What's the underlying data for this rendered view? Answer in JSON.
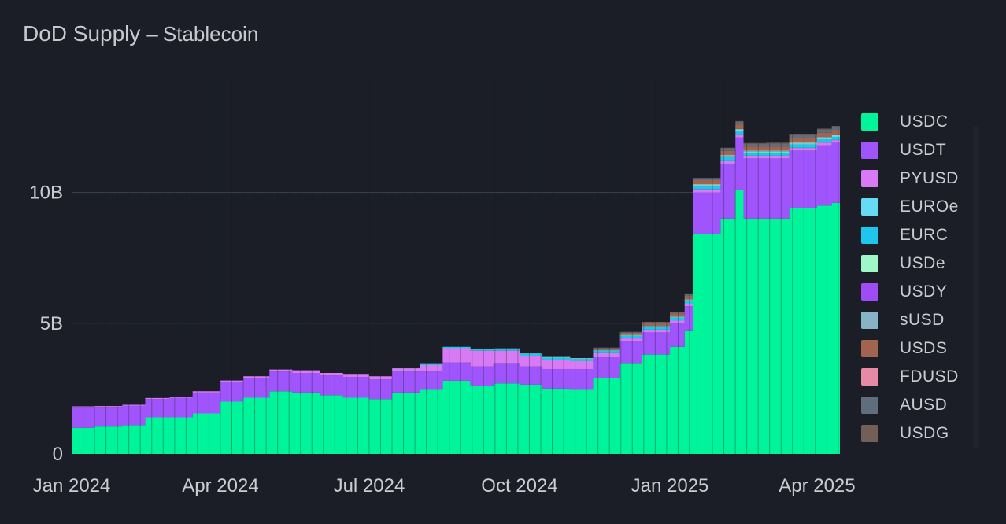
{
  "title": {
    "main": "DoD Supply",
    "separator": "–",
    "subtitle": "Stablecoin"
  },
  "colors": {
    "background": "#1b1e26",
    "grid": "#3b4553",
    "text": "#c9ccd3"
  },
  "chart_data": {
    "type": "area",
    "stacked": true,
    "title": "DoD Supply – Stablecoin",
    "xlabel": "",
    "ylabel": "",
    "x_ticks": [
      "Jan 2024",
      "Apr 2024",
      "Jul 2024",
      "Oct 2024",
      "Jan 2025",
      "Apr 2025"
    ],
    "y_ticks": [
      "0",
      "5B",
      "10B"
    ],
    "y_tick_values": [
      0,
      5,
      10
    ],
    "ylim": [
      0,
      14.5
    ],
    "unit": "B",
    "grid": "horizontal",
    "legend_position": "right",
    "x": [
      "2024-01-01",
      "2024-01-15",
      "2024-02-01",
      "2024-02-15",
      "2024-03-01",
      "2024-03-15",
      "2024-04-01",
      "2024-04-15",
      "2024-05-01",
      "2024-05-15",
      "2024-06-01",
      "2024-06-15",
      "2024-07-01",
      "2024-07-15",
      "2024-08-01",
      "2024-08-15",
      "2024-09-01",
      "2024-09-15",
      "2024-10-01",
      "2024-10-15",
      "2024-11-01",
      "2024-11-15",
      "2024-12-01",
      "2024-12-15",
      "2025-01-01",
      "2025-01-10",
      "2025-01-15",
      "2025-02-01",
      "2025-02-10",
      "2025-02-15",
      "2025-03-01",
      "2025-03-15",
      "2025-04-01",
      "2025-04-10"
    ],
    "series": [
      {
        "name": "USDC",
        "color": "#00f59b",
        "values": [
          1.0,
          1.05,
          1.1,
          1.4,
          1.4,
          1.55,
          2.0,
          2.15,
          2.4,
          2.35,
          2.25,
          2.15,
          2.1,
          2.35,
          2.45,
          2.8,
          2.6,
          2.7,
          2.65,
          2.5,
          2.45,
          2.9,
          3.45,
          3.8,
          4.1,
          4.7,
          8.4,
          9.0,
          10.1,
          9.0,
          9.0,
          9.4,
          9.5,
          9.6
        ]
      },
      {
        "name": "USDT",
        "color": "#a054fc",
        "values": [
          0.8,
          0.75,
          0.75,
          0.7,
          0.75,
          0.8,
          0.75,
          0.75,
          0.75,
          0.75,
          0.75,
          0.8,
          0.75,
          0.8,
          0.7,
          0.7,
          0.75,
          0.75,
          0.7,
          0.75,
          0.8,
          0.8,
          0.85,
          0.85,
          0.9,
          0.95,
          1.6,
          2.1,
          2.0,
          2.3,
          2.3,
          2.2,
          2.3,
          2.3
        ]
      },
      {
        "name": "PYUSD",
        "color": "#d97af5",
        "values": [
          0.02,
          0.03,
          0.03,
          0.04,
          0.04,
          0.05,
          0.06,
          0.07,
          0.08,
          0.1,
          0.1,
          0.11,
          0.12,
          0.12,
          0.25,
          0.55,
          0.6,
          0.5,
          0.4,
          0.35,
          0.3,
          0.15,
          0.12,
          0.1,
          0.1,
          0.1,
          0.12,
          0.12,
          0.12,
          0.1,
          0.1,
          0.1,
          0.1,
          0.1
        ]
      },
      {
        "name": "EUROe",
        "color": "#66dbf4",
        "values": [
          0,
          0,
          0,
          0,
          0,
          0,
          0,
          0,
          0,
          0,
          0,
          0,
          0,
          0.01,
          0.01,
          0.01,
          0.01,
          0.01,
          0.01,
          0.01,
          0.01,
          0.01,
          0.01,
          0.01,
          0.01,
          0.01,
          0.01,
          0.01,
          0.01,
          0.01,
          0.01,
          0.01,
          0.01,
          0.01
        ]
      },
      {
        "name": "EURC",
        "color": "#1ec6ee",
        "values": [
          0,
          0,
          0,
          0,
          0,
          0,
          0,
          0,
          0,
          0,
          0,
          0,
          0,
          0,
          0.03,
          0.04,
          0.05,
          0.06,
          0.07,
          0.08,
          0.08,
          0.09,
          0.09,
          0.1,
          0.1,
          0.11,
          0.12,
          0.12,
          0.12,
          0.12,
          0.12,
          0.13,
          0.13,
          0.13
        ]
      },
      {
        "name": "USDe",
        "color": "#9ef7c6",
        "values": [
          0,
          0,
          0,
          0,
          0,
          0,
          0,
          0,
          0,
          0,
          0,
          0,
          0,
          0,
          0,
          0,
          0,
          0.01,
          0.01,
          0.01,
          0.01,
          0.01,
          0.02,
          0.02,
          0.02,
          0.02,
          0.03,
          0.03,
          0.03,
          0.03,
          0.03,
          0.03,
          0.03,
          0.03
        ]
      },
      {
        "name": "USDY",
        "color": "#9f4cf6",
        "values": [
          0,
          0,
          0,
          0,
          0,
          0,
          0,
          0,
          0,
          0,
          0,
          0,
          0,
          0,
          0,
          0,
          0,
          0,
          0,
          0,
          0,
          0,
          0,
          0,
          0,
          0,
          0,
          0,
          0,
          0,
          0,
          0,
          0,
          0
        ]
      },
      {
        "name": "sUSD",
        "color": "#86b3c6",
        "values": [
          0,
          0,
          0,
          0,
          0,
          0,
          0,
          0,
          0,
          0,
          0,
          0,
          0,
          0,
          0,
          0,
          0,
          0.01,
          0.01,
          0.01,
          0.02,
          0.02,
          0.02,
          0.02,
          0.03,
          0.03,
          0.04,
          0.05,
          0.05,
          0.05,
          0.05,
          0.05,
          0.05,
          0.05
        ]
      },
      {
        "name": "USDS",
        "color": "#a3644f",
        "values": [
          0,
          0,
          0,
          0,
          0,
          0,
          0,
          0,
          0,
          0,
          0,
          0,
          0,
          0,
          0,
          0,
          0,
          0,
          0,
          0,
          0,
          0.06,
          0.08,
          0.1,
          0.12,
          0.13,
          0.15,
          0.16,
          0.17,
          0.15,
          0.15,
          0.16,
          0.16,
          0.16
        ]
      },
      {
        "name": "FDUSD",
        "color": "#e78aa6",
        "values": [
          0,
          0,
          0,
          0,
          0,
          0,
          0,
          0,
          0,
          0,
          0,
          0,
          0,
          0,
          0,
          0,
          0,
          0,
          0,
          0,
          0,
          0,
          0,
          0,
          0,
          0,
          0,
          0,
          0,
          0,
          0,
          0,
          0,
          0
        ]
      },
      {
        "name": "AUSD",
        "color": "#5f6d7c",
        "values": [
          0,
          0,
          0,
          0,
          0,
          0,
          0,
          0,
          0,
          0,
          0,
          0,
          0,
          0,
          0,
          0,
          0,
          0,
          0,
          0,
          0,
          0.03,
          0.03,
          0.05,
          0.06,
          0.06,
          0.08,
          0.1,
          0.1,
          0.1,
          0.11,
          0.12,
          0.12,
          0.12
        ]
      },
      {
        "name": "USDG",
        "color": "#735f55",
        "values": [
          0,
          0,
          0,
          0,
          0,
          0,
          0,
          0,
          0,
          0,
          0,
          0,
          0,
          0,
          0,
          0,
          0,
          0,
          0,
          0,
          0,
          0,
          0,
          0,
          0,
          0,
          0,
          0.02,
          0.03,
          0.03,
          0.03,
          0.04,
          0.04,
          0.04
        ]
      }
    ]
  }
}
